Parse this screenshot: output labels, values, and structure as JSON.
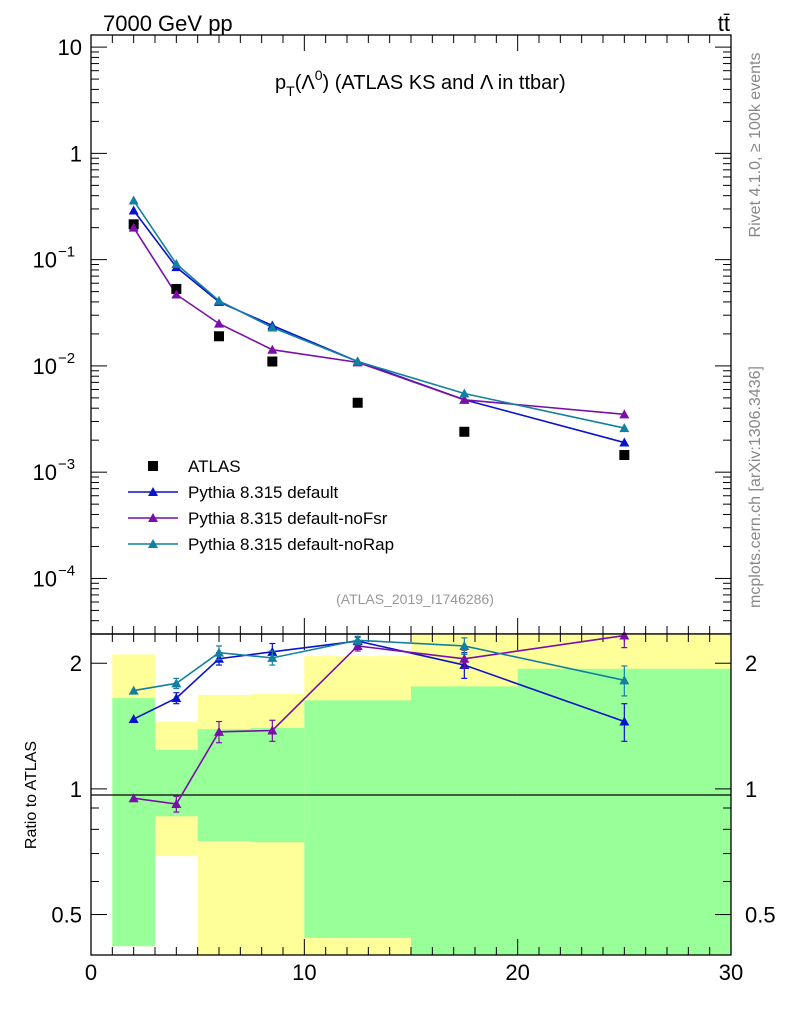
{
  "header": {
    "left": "7000 GeV pp",
    "right": "tt̄"
  },
  "side": {
    "rivet": "Rivet 4.1.0, ≥ 100k events",
    "mcplots": "mcplots.cern.ch [arXiv:1306.3436]"
  },
  "colors": {
    "atlas": "#000000",
    "default": "#0a14c8",
    "noFsr": "#7a0fa8",
    "noRap": "#1480a0",
    "band_yellow": "#ffff99",
    "band_green": "#99ff99"
  },
  "chart_data": [
    {
      "type": "line",
      "panel": "main",
      "title": "p_T(Λ⁰) (ATLAS KS and Λ in ttbar)",
      "title_parts": {
        "p": "p",
        "sub": "T",
        "lead": "(Λ",
        "sup": "0",
        "rest": ") (ATLAS KS and Λ in ttbar)"
      },
      "watermark": "(ATLAS_2019_I1746286)",
      "xlim": [
        0,
        30
      ],
      "yscale": "log",
      "ylim": [
        3e-05,
        13
      ],
      "yticks": [
        {
          "value": 10,
          "label": "10"
        },
        {
          "value": 1,
          "label": "1"
        },
        {
          "value": 0.1,
          "base": "10",
          "exp": "−1"
        },
        {
          "value": 0.01,
          "base": "10",
          "exp": "−2"
        },
        {
          "value": 0.001,
          "base": "10",
          "exp": "−3"
        },
        {
          "value": 0.0001,
          "base": "10",
          "exp": "−4"
        }
      ],
      "legend_position": "lower-left",
      "series": [
        {
          "name": "ATLAS",
          "key": "atlas",
          "marker": "square",
          "x": [
            2,
            4,
            6,
            8.5,
            12.5,
            17.5,
            25
          ],
          "y": [
            0.215,
            0.053,
            0.019,
            0.011,
            0.0045,
            0.0024,
            0.00145
          ]
        },
        {
          "name": "Pythia 8.315 default",
          "key": "default",
          "marker": "triangle",
          "x": [
            2,
            4,
            6,
            8.5,
            12.5,
            17.5,
            25
          ],
          "y": [
            0.29,
            0.085,
            0.04,
            0.024,
            0.011,
            0.0048,
            0.0019
          ]
        },
        {
          "name": "Pythia 8.315 default-noFsr",
          "key": "noFsr",
          "marker": "triangle",
          "x": [
            2,
            4,
            6,
            8.5,
            12.5,
            17.5,
            25
          ],
          "y": [
            0.2,
            0.047,
            0.025,
            0.0142,
            0.0108,
            0.0048,
            0.0035
          ]
        },
        {
          "name": "Pythia 8.315 default-noRap",
          "key": "noRap",
          "marker": "triangle",
          "x": [
            2,
            4,
            6,
            8.5,
            12.5,
            17.5,
            25
          ],
          "y": [
            0.36,
            0.091,
            0.041,
            0.023,
            0.011,
            0.0055,
            0.0026
          ]
        }
      ]
    },
    {
      "type": "line",
      "panel": "ratio",
      "ylabel": "Ratio to ATLAS",
      "xlim": [
        0,
        30
      ],
      "yscale": "log",
      "ylim": [
        0.4,
        2.35
      ],
      "reference": 1,
      "xticks": [
        {
          "value": 0,
          "label": "0"
        },
        {
          "value": 10,
          "label": "10"
        },
        {
          "value": 20,
          "label": "20"
        },
        {
          "value": 30,
          "label": "30"
        }
      ],
      "yticks": [
        {
          "value": 2,
          "label": "2"
        },
        {
          "value": 1,
          "label": "1"
        },
        {
          "value": 0.5,
          "label": "0.5"
        }
      ],
      "bands": [
        {
          "x0": 1,
          "x1": 3,
          "yellow": [
            0.42,
            2.1
          ],
          "green": [
            0.42,
            1.65
          ]
        },
        {
          "x0": 3,
          "x1": 5,
          "yellow": [
            0.69,
            1.45
          ],
          "green": [
            0.86,
            1.24
          ]
        },
        {
          "x0": 5,
          "x1": 7.5,
          "yellow": [
            0.38,
            1.68
          ],
          "green": [
            0.75,
            1.39
          ]
        },
        {
          "x0": 7.5,
          "x1": 10,
          "yellow": [
            0.38,
            1.69
          ],
          "green": [
            0.745,
            1.4
          ]
        },
        {
          "x0": 10,
          "x1": 15,
          "yellow": [
            0.38,
            2.08
          ],
          "green": [
            0.44,
            1.63
          ]
        },
        {
          "x0": 15,
          "x1": 20,
          "yellow": [
            0.38,
            2.35
          ],
          "green": [
            0.38,
            1.76
          ]
        },
        {
          "x0": 20,
          "x1": 30,
          "yellow": [
            0.38,
            2.35
          ],
          "green": [
            0.38,
            1.94
          ]
        }
      ],
      "series": [
        {
          "name": "Pythia 8.315 default",
          "key": "default",
          "x": [
            2,
            4,
            6,
            8.5,
            12.5,
            17.5,
            25
          ],
          "y": [
            1.47,
            1.65,
            2.05,
            2.13,
            2.26,
            1.98,
            1.45
          ],
          "err": [
            0,
            0.05,
            0.07,
            0.1,
            0.05,
            0.14,
            0.15
          ]
        },
        {
          "name": "Pythia 8.315 default-noFsr",
          "key": "noFsr",
          "x": [
            2,
            4,
            6,
            8.5,
            12.5,
            17.5,
            25
          ],
          "y": [
            0.95,
            0.92,
            1.37,
            1.38,
            2.2,
            2.05,
            2.33
          ],
          "err": [
            0,
            0.04,
            0.08,
            0.08,
            0.06,
            0.1,
            0.15
          ]
        },
        {
          "name": "Pythia 8.315 default-noRap",
          "key": "noRap",
          "x": [
            2,
            4,
            6,
            8.5,
            12.5,
            17.5,
            25
          ],
          "y": [
            1.72,
            1.79,
            2.12,
            2.06,
            2.27,
            2.2,
            1.82
          ],
          "err": [
            0,
            0.05,
            0.08,
            0.08,
            0.05,
            0.1,
            0.15
          ]
        }
      ]
    }
  ]
}
